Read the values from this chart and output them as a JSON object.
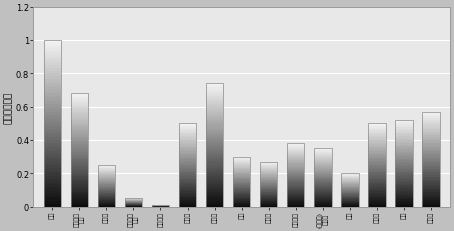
{
  "categories": [
    "英石",
    "英石五计\n解合",
    "印文被",
    "计量发展\n问题",
    "计量由解",
    "印要六",
    "印印由",
    "组被",
    "要道计",
    "印迟迟本",
    "(印迟英)\n印迟被",
    "印迟",
    "解印司",
    "解英",
    "印英事"
  ],
  "values": [
    1.0,
    0.68,
    0.25,
    0.055,
    0.01,
    0.5,
    0.74,
    0.3,
    0.27,
    0.38,
    0.35,
    0.2,
    0.5,
    0.52,
    0.57
  ],
  "ylabel": "矿物脆性系数",
  "ylim": [
    0,
    1.2
  ],
  "yticks": [
    0,
    0.2,
    0.4,
    0.6,
    0.8,
    1.0,
    1.2
  ],
  "ytick_labels": [
    "0",
    "0.2",
    "0.4",
    "0.6",
    "0.8",
    "1",
    "1.2"
  ],
  "plot_bg": "#e8e8e8",
  "figure_bg": "#c0c0c0",
  "grid_color": "#ffffff",
  "bar_edge_color": "#888888",
  "bar_width": 0.65,
  "n_grad": 60
}
